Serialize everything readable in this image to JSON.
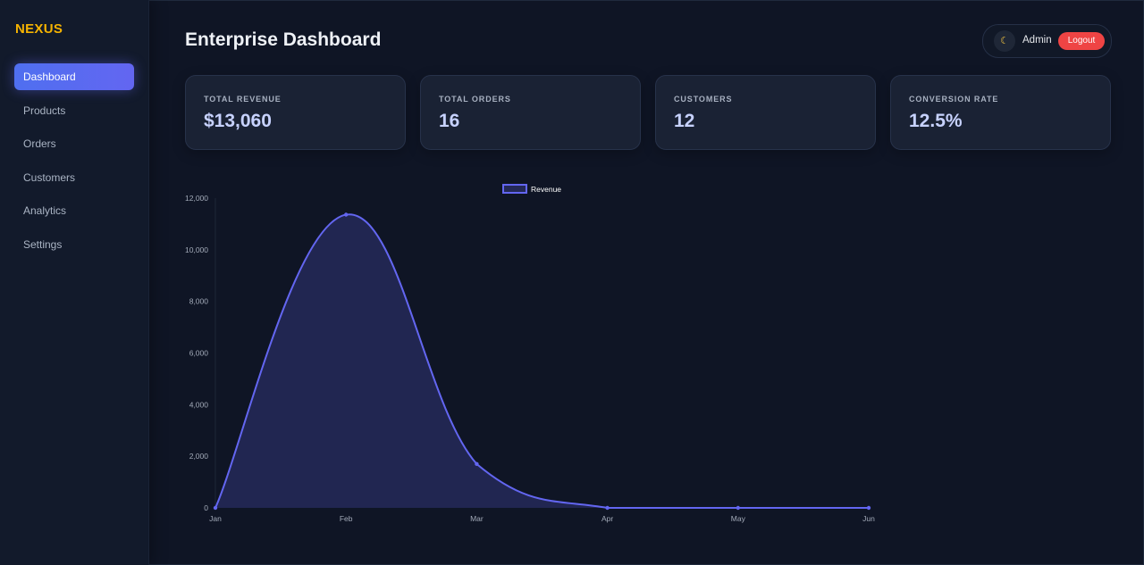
{
  "brand": "NEXUS",
  "sidebar": {
    "items": [
      {
        "label": "Dashboard",
        "active": true
      },
      {
        "label": "Products"
      },
      {
        "label": "Orders"
      },
      {
        "label": "Customers"
      },
      {
        "label": "Analytics"
      },
      {
        "label": "Settings"
      }
    ]
  },
  "header": {
    "title": "Enterprise Dashboard",
    "theme_icon": "moon-icon",
    "user": "Admin",
    "logout_label": "Logout"
  },
  "stats": [
    {
      "label": "TOTAL REVENUE",
      "value": "$13,060"
    },
    {
      "label": "TOTAL ORDERS",
      "value": "16"
    },
    {
      "label": "CUSTOMERS",
      "value": "12"
    },
    {
      "label": "CONVERSION RATE",
      "value": "12.5%"
    }
  ],
  "colors": {
    "accent": "#6366f1",
    "brand": "#f5b301",
    "logout": "#ef4444"
  },
  "chart_data": {
    "type": "area",
    "categories": [
      "Jan",
      "Feb",
      "Mar",
      "Apr",
      "May",
      "Jun"
    ],
    "series": [
      {
        "name": "Revenue",
        "values": [
          0,
          11360,
          1700,
          0,
          0,
          0
        ]
      }
    ],
    "ylim": [
      0,
      12000
    ],
    "yticks": [
      0,
      2000,
      4000,
      6000,
      8000,
      10000,
      12000
    ],
    "ytick_labels": [
      "0",
      "2,000",
      "4,000",
      "6,000",
      "8,000",
      "10,000",
      "12,000"
    ],
    "legend": "top-center",
    "grid": false
  }
}
